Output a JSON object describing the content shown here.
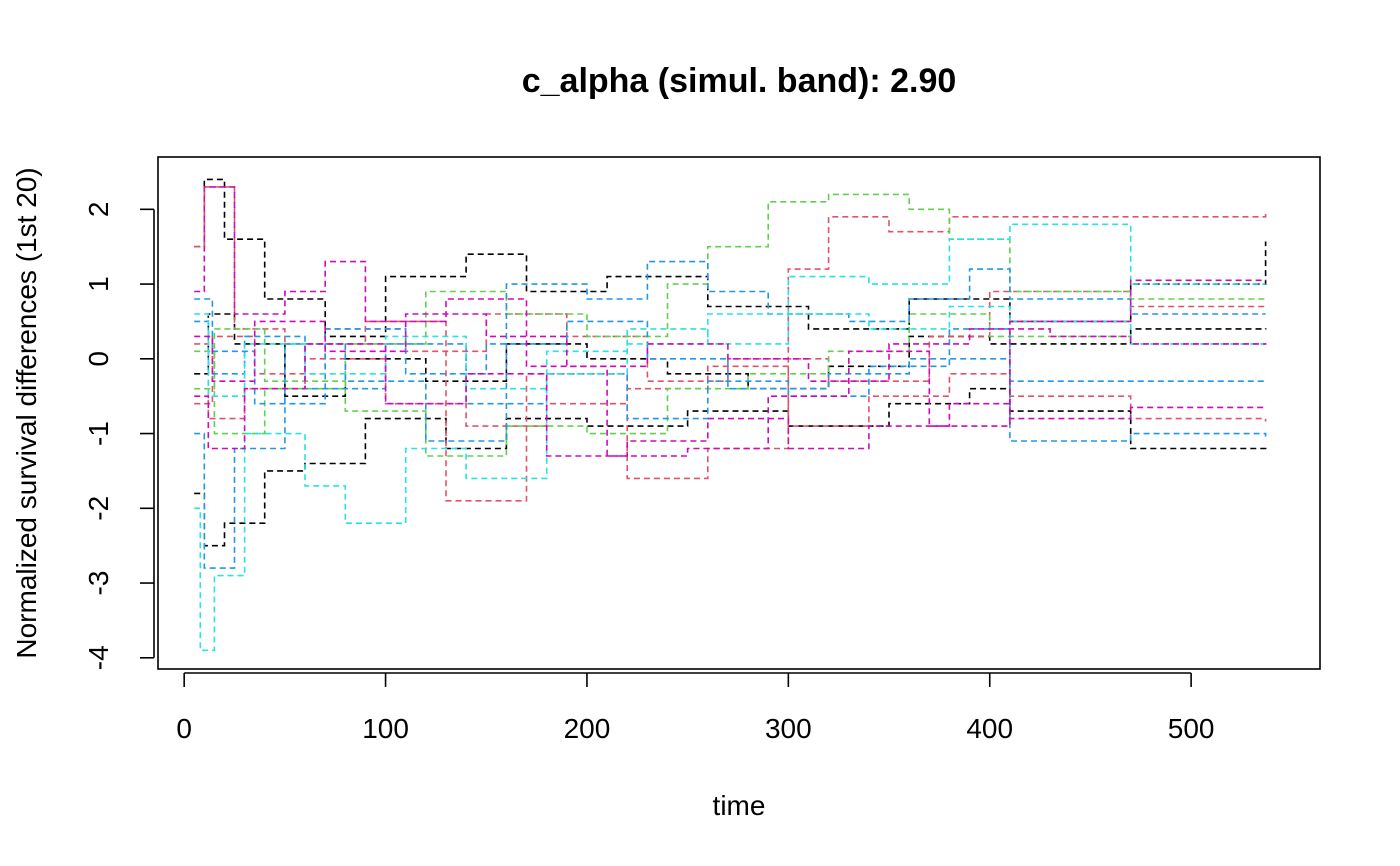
{
  "chart_data": {
    "type": "line",
    "title": "c_alpha (simul. band): 2.90",
    "xlabel": "time",
    "ylabel": "Normalized survival differences (1st 20)",
    "xlim": [
      -13,
      564
    ],
    "ylim": [
      -4.15,
      2.7
    ],
    "xticks": [
      "0",
      "100",
      "200",
      "300",
      "400",
      "500"
    ],
    "xtick_values": [
      0,
      100,
      200,
      300,
      400,
      500
    ],
    "yticks": [
      "-4",
      "-3",
      "-2",
      "-1",
      "0",
      "1",
      "2"
    ],
    "ytick_values": [
      -4,
      -3,
      -2,
      -1,
      0,
      1,
      2
    ],
    "grid": false,
    "legend": "none",
    "line_style": "dashed-step",
    "palette": [
      "#000000",
      "#DF536B",
      "#61D04F",
      "#2297E6",
      "#28E2E5",
      "#CD0BBC"
    ],
    "series": [
      {
        "color": "#000000",
        "x": [
          5,
          10,
          20,
          40,
          70,
          100,
          140,
          170,
          210,
          260,
          310,
          360,
          410,
          470,
          537
        ],
        "y": [
          1.5,
          2.4,
          1.6,
          0.8,
          0.3,
          1.1,
          1.4,
          0.9,
          1.1,
          0.7,
          0.4,
          0.8,
          0.5,
          1.0,
          1.57
        ]
      },
      {
        "color": "#000000",
        "x": [
          5,
          10,
          20,
          40,
          60,
          90,
          130,
          160,
          200,
          250,
          300,
          350,
          390,
          410,
          470,
          537
        ],
        "y": [
          -1.8,
          -2.5,
          -2.2,
          -1.5,
          -1.4,
          -0.8,
          -1.2,
          -0.8,
          -0.9,
          -0.7,
          -0.9,
          -0.6,
          -0.4,
          -0.7,
          -1.2,
          -1.21
        ]
      },
      {
        "color": "#000000",
        "x": [
          5,
          12,
          25,
          50,
          80,
          120,
          160,
          200,
          240,
          280,
          320,
          360,
          400,
          470,
          537
        ],
        "y": [
          -0.2,
          0.6,
          0.2,
          -0.5,
          0.0,
          -0.3,
          0.2,
          0.0,
          -0.2,
          -0.4,
          -0.1,
          0.3,
          0.2,
          0.4,
          0.41
        ]
      },
      {
        "color": "#DF536B",
        "x": [
          5,
          10,
          25,
          50,
          90,
          130,
          170,
          220,
          260,
          300,
          320,
          350,
          380,
          410,
          470,
          537
        ],
        "y": [
          1.5,
          2.3,
          0.4,
          0.2,
          0.5,
          -1.9,
          -0.2,
          -1.6,
          -1.2,
          1.2,
          1.9,
          1.7,
          1.9,
          1.9,
          1.9,
          1.96
        ]
      },
      {
        "color": "#DF536B",
        "x": [
          5,
          12,
          30,
          60,
          100,
          140,
          180,
          220,
          260,
          300,
          340,
          380,
          410,
          470,
          537
        ],
        "y": [
          0.2,
          -0.8,
          -0.4,
          0.0,
          -0.6,
          -0.9,
          -0.6,
          -0.4,
          -0.1,
          -0.9,
          -0.5,
          -0.2,
          -0.5,
          -0.8,
          -0.84
        ]
      },
      {
        "color": "#DF536B",
        "x": [
          5,
          14,
          35,
          70,
          110,
          150,
          190,
          230,
          270,
          320,
          370,
          400,
          470,
          537
        ],
        "y": [
          -0.6,
          0.3,
          -0.2,
          0.4,
          0.1,
          0.6,
          0.3,
          -0.3,
          0.0,
          -0.3,
          0.3,
          0.9,
          0.7,
          0.7
        ]
      },
      {
        "color": "#61D04F",
        "x": [
          5,
          15,
          40,
          80,
          120,
          160,
          200,
          240,
          260,
          290,
          320,
          360,
          380,
          410,
          470,
          537
        ],
        "y": [
          0.1,
          -1.0,
          -0.4,
          0.2,
          0.9,
          0.6,
          0.3,
          1.0,
          1.5,
          2.1,
          2.2,
          2.0,
          1.6,
          0.9,
          0.8,
          0.83
        ]
      },
      {
        "color": "#61D04F",
        "x": [
          5,
          15,
          40,
          80,
          120,
          160,
          200,
          240,
          280,
          320,
          360,
          400,
          470,
          537
        ],
        "y": [
          -0.4,
          0.4,
          -0.3,
          -0.7,
          -1.3,
          -0.9,
          -1.0,
          -0.4,
          -0.2,
          0.1,
          0.6,
          0.3,
          0.2,
          0.23
        ]
      },
      {
        "color": "#2297E6",
        "x": [
          5,
          10,
          25,
          50,
          80,
          120,
          160,
          200,
          230,
          260,
          290,
          330,
          360,
          390,
          410,
          470,
          537
        ],
        "y": [
          -1.0,
          -2.8,
          -1.2,
          0.2,
          -0.3,
          -1.1,
          1.0,
          0.8,
          1.3,
          0.9,
          0.6,
          0.5,
          0.8,
          1.2,
          0.8,
          0.6,
          0.6
        ]
      },
      {
        "color": "#2297E6",
        "x": [
          5,
          12,
          30,
          60,
          100,
          140,
          180,
          220,
          260,
          300,
          340,
          380,
          410,
          470,
          537
        ],
        "y": [
          0.5,
          -0.2,
          0.3,
          -0.4,
          0.2,
          -0.6,
          -0.2,
          -0.8,
          -0.3,
          -0.5,
          -0.1,
          0.4,
          -1.1,
          -1.0,
          -1.04
        ]
      },
      {
        "color": "#2297E6",
        "x": [
          5,
          14,
          35,
          70,
          110,
          150,
          190,
          230,
          270,
          320,
          360,
          410,
          470,
          537
        ],
        "y": [
          0.8,
          0.1,
          -0.6,
          0.4,
          -0.2,
          0.2,
          0.5,
          0.0,
          -0.4,
          -0.2,
          0.0,
          -0.3,
          -0.3,
          -0.3
        ]
      },
      {
        "color": "#28E2E5",
        "x": [
          5,
          8,
          15,
          30,
          60,
          80,
          110,
          140,
          180,
          220,
          260,
          300,
          340,
          380,
          410,
          470,
          537
        ],
        "y": [
          -2.0,
          -3.9,
          -2.9,
          -1.0,
          -1.7,
          -2.2,
          -1.2,
          -1.6,
          -0.2,
          0.2,
          0.6,
          1.1,
          1.0,
          1.6,
          1.8,
          1.0,
          1.0
        ]
      },
      {
        "color": "#28E2E5",
        "x": [
          5,
          12,
          30,
          60,
          100,
          140,
          180,
          220,
          260,
          300,
          340,
          380,
          410,
          470,
          537
        ],
        "y": [
          0.6,
          -0.5,
          0.2,
          -0.2,
          0.3,
          -0.4,
          0.1,
          0.4,
          0.2,
          0.6,
          0.4,
          0.7,
          0.5,
          0.2,
          0.2
        ]
      },
      {
        "color": "#CD0BBC",
        "x": [
          5,
          10,
          25,
          50,
          70,
          90,
          130,
          170,
          210,
          250,
          290,
          330,
          370,
          410,
          470,
          537
        ],
        "y": [
          0.9,
          2.3,
          0.6,
          0.9,
          1.3,
          0.5,
          0.8,
          -0.1,
          -1.3,
          -1.2,
          -0.5,
          0.1,
          -0.9,
          0.5,
          1.05,
          1.06
        ]
      },
      {
        "color": "#CD0BBC",
        "x": [
          5,
          12,
          30,
          60,
          100,
          140,
          180,
          220,
          260,
          300,
          340,
          380,
          410,
          470,
          537
        ],
        "y": [
          -0.5,
          -1.2,
          -0.4,
          0.2,
          -0.6,
          -0.2,
          -1.3,
          -1.1,
          -0.8,
          -1.2,
          -0.9,
          -0.6,
          -0.8,
          -0.65,
          -0.66
        ]
      },
      {
        "color": "#CD0BBC",
        "x": [
          5,
          14,
          35,
          70,
          110,
          150,
          190,
          230,
          270,
          310,
          350,
          390,
          430,
          470,
          537
        ],
        "y": [
          0.3,
          -0.3,
          0.5,
          0.1,
          0.6,
          0.3,
          -0.1,
          0.2,
          0.0,
          -0.3,
          0.2,
          0.4,
          0.3,
          0.2,
          0.21
        ]
      }
    ]
  }
}
